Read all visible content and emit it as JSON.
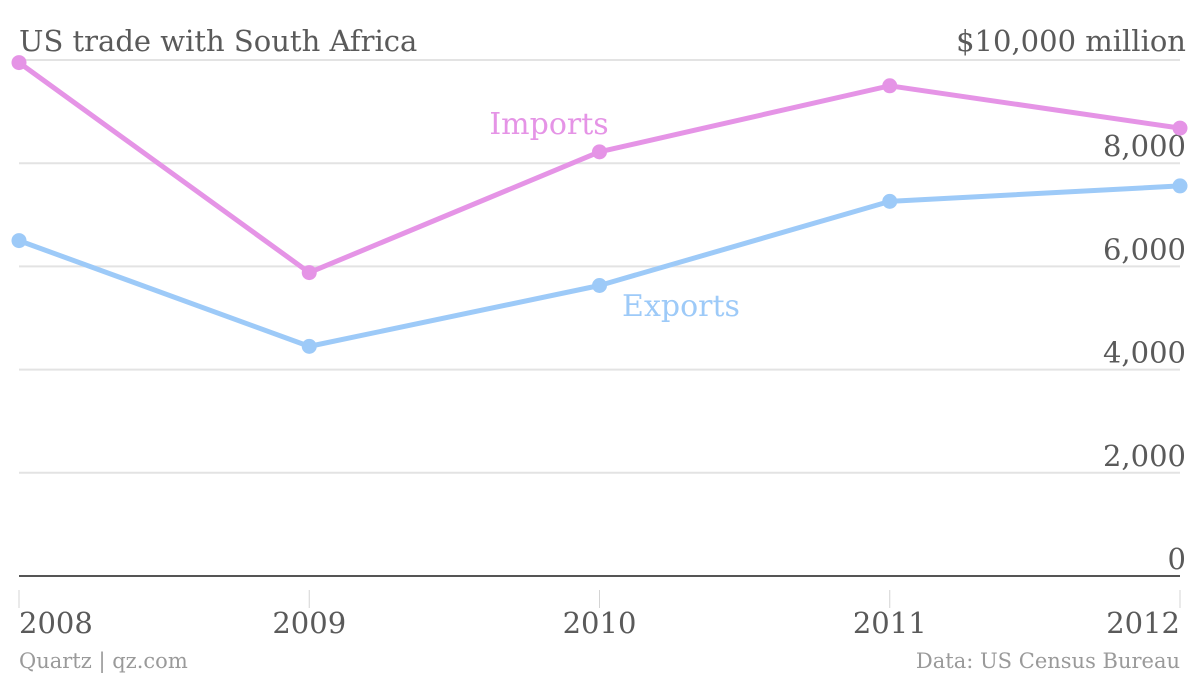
{
  "chart_data": {
    "type": "line",
    "title": "US trade with South Africa",
    "unit_label": "$10,000 million",
    "x": [
      "2008",
      "2009",
      "2010",
      "2011",
      "2012"
    ],
    "ylim": [
      0,
      10000
    ],
    "y_ticks": [
      "0",
      "2,000",
      "4,000",
      "6,000",
      "8,000"
    ],
    "grid": true,
    "series": [
      {
        "name": "Imports",
        "color": "#e594e6",
        "values": [
          9950,
          5880,
          8220,
          9500,
          8680
        ]
      },
      {
        "name": "Exports",
        "color": "#9dcaf8",
        "values": [
          6500,
          4450,
          5630,
          7260,
          7560
        ]
      }
    ],
    "footer_left": "Quartz | qz.com",
    "footer_right": "Data: US Census Bureau"
  }
}
